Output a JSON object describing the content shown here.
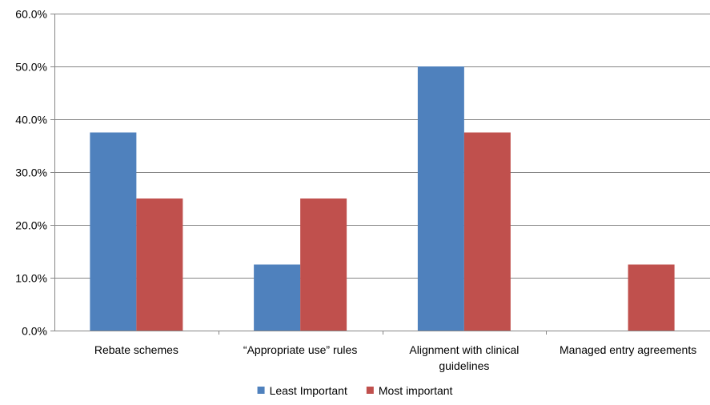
{
  "chart_data": {
    "type": "bar",
    "categories": [
      [
        "Rebate schemes"
      ],
      [
        "“Appropriate use” rules"
      ],
      [
        "Alignment with clinical",
        "guidelines"
      ],
      [
        "Managed entry agreements"
      ]
    ],
    "series": [
      {
        "name": "Least Important",
        "values": [
          37.5,
          12.5,
          50.0,
          0.0
        ],
        "color": "#4F81BD"
      },
      {
        "name": "Most important",
        "values": [
          25.0,
          25.0,
          37.5,
          12.5
        ],
        "color": "#C0504D"
      }
    ],
    "yticks": [
      "0.0%",
      "10.0%",
      "20.0%",
      "30.0%",
      "40.0%",
      "50.0%",
      "60.0%"
    ],
    "ylim": [
      0,
      60
    ],
    "grid": true,
    "legend": "bottom",
    "colors": {
      "grid": "#868686",
      "axis": "#868686"
    }
  }
}
